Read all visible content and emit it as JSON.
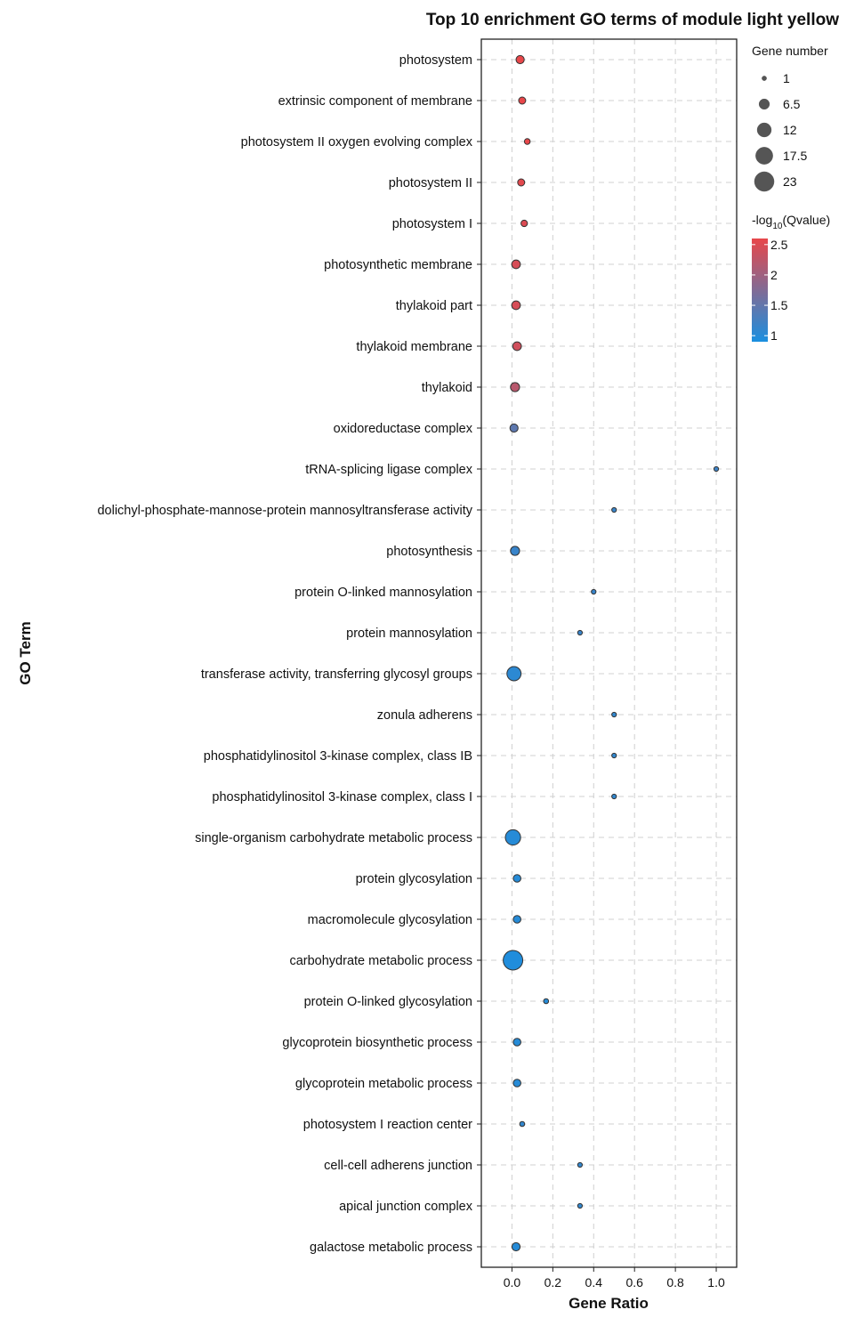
{
  "chart_data": {
    "type": "scatter",
    "title": "Top 10 enrichment GO terms of module light yellow",
    "xlabel": "Gene Ratio",
    "ylabel": "GO Term",
    "xlim": [
      -0.15,
      1.1
    ],
    "xticks": [
      0.0,
      0.2,
      0.4,
      0.6,
      0.8,
      1.0
    ],
    "xtick_labels": [
      "0.0",
      "0.2",
      "0.4",
      "0.6",
      "0.8",
      "1.0"
    ],
    "grid": true,
    "size_legend": {
      "title": "Gene number",
      "values": [
        1,
        6.5,
        12,
        17.5,
        23
      ],
      "labels": [
        "1",
        "6.5",
        "12",
        "17.5",
        "23"
      ]
    },
    "color_legend": {
      "title_prefix": "-log",
      "title_sub": "10",
      "title_suffix": "(Qvalue)",
      "min": 0.9,
      "max": 2.6,
      "low_color": "#1a8fe0",
      "high_color": "#e8474a",
      "ticks": [
        2.5,
        2,
        1.5,
        1
      ],
      "tick_labels": [
        "2.5",
        "2",
        "1.5",
        "1"
      ]
    },
    "points": [
      {
        "term": "photosystem",
        "ratio": 0.04,
        "genes": 4,
        "neglogq": 2.6
      },
      {
        "term": "extrinsic component of membrane",
        "ratio": 0.05,
        "genes": 3,
        "neglogq": 2.6
      },
      {
        "term": "photosystem II oxygen evolving complex",
        "ratio": 0.075,
        "genes": 2,
        "neglogq": 2.6
      },
      {
        "term": "photosystem II",
        "ratio": 0.045,
        "genes": 3,
        "neglogq": 2.55
      },
      {
        "term": "photosystem I",
        "ratio": 0.06,
        "genes": 2.5,
        "neglogq": 2.5
      },
      {
        "term": "photosynthetic membrane",
        "ratio": 0.02,
        "genes": 4.5,
        "neglogq": 2.45
      },
      {
        "term": "thylakoid part",
        "ratio": 0.02,
        "genes": 4.5,
        "neglogq": 2.45
      },
      {
        "term": "thylakoid membrane",
        "ratio": 0.025,
        "genes": 4.5,
        "neglogq": 2.4
      },
      {
        "term": "thylakoid",
        "ratio": 0.015,
        "genes": 5,
        "neglogq": 2.2
      },
      {
        "term": "oxidoreductase complex",
        "ratio": 0.01,
        "genes": 4,
        "neglogq": 1.45
      },
      {
        "term": "tRNA-splicing ligase complex",
        "ratio": 1.0,
        "genes": 1,
        "neglogq": 1.2
      },
      {
        "term": "dolichyl-phosphate-mannose-protein mannosyltransferase activity",
        "ratio": 0.5,
        "genes": 1,
        "neglogq": 1.15
      },
      {
        "term": "photosynthesis",
        "ratio": 0.015,
        "genes": 5,
        "neglogq": 1.15
      },
      {
        "term": "protein O-linked mannosylation",
        "ratio": 0.4,
        "genes": 1,
        "neglogq": 1.15
      },
      {
        "term": "protein mannosylation",
        "ratio": 0.333,
        "genes": 1.2,
        "neglogq": 1.15
      },
      {
        "term": "transferase activity, transferring glycosyl groups",
        "ratio": 0.01,
        "genes": 12,
        "neglogq": 1.05
      },
      {
        "term": "zonula adherens",
        "ratio": 0.5,
        "genes": 1,
        "neglogq": 1.1
      },
      {
        "term": "phosphatidylinositol 3-kinase complex, class IB",
        "ratio": 0.5,
        "genes": 1,
        "neglogq": 1.1
      },
      {
        "term": "phosphatidylinositol 3-kinase complex, class I",
        "ratio": 0.5,
        "genes": 1,
        "neglogq": 1.1
      },
      {
        "term": "single-organism carbohydrate metabolic process",
        "ratio": 0.005,
        "genes": 14,
        "neglogq": 1.0
      },
      {
        "term": "protein glycosylation",
        "ratio": 0.025,
        "genes": 3.5,
        "neglogq": 1.0
      },
      {
        "term": "macromolecule glycosylation",
        "ratio": 0.025,
        "genes": 3.5,
        "neglogq": 1.0
      },
      {
        "term": "carbohydrate metabolic process",
        "ratio": 0.005,
        "genes": 23,
        "neglogq": 0.95
      },
      {
        "term": "protein O-linked glycosylation",
        "ratio": 0.167,
        "genes": 1.5,
        "neglogq": 1.0
      },
      {
        "term": "glycoprotein biosynthetic process",
        "ratio": 0.025,
        "genes": 3.5,
        "neglogq": 1.0
      },
      {
        "term": "glycoprotein metabolic process",
        "ratio": 0.025,
        "genes": 3.5,
        "neglogq": 1.0
      },
      {
        "term": "photosystem I reaction center",
        "ratio": 0.05,
        "genes": 1.5,
        "neglogq": 1.1
      },
      {
        "term": "cell-cell adherens junction",
        "ratio": 0.333,
        "genes": 1.2,
        "neglogq": 1.1
      },
      {
        "term": "apical junction complex",
        "ratio": 0.333,
        "genes": 1.2,
        "neglogq": 1.1
      },
      {
        "term": "galactose metabolic process",
        "ratio": 0.02,
        "genes": 4,
        "neglogq": 1.0
      }
    ]
  }
}
